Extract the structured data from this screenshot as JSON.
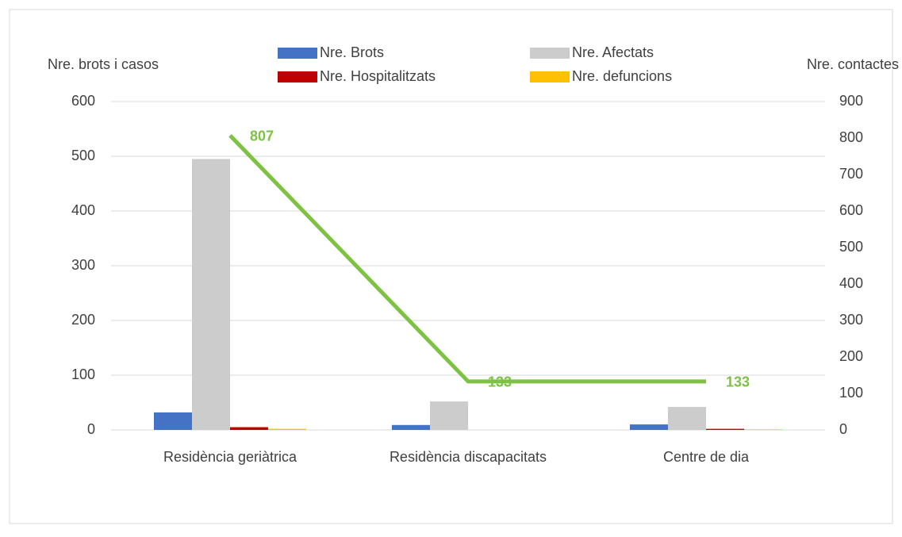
{
  "chart_data": {
    "type": "bar",
    "y_title": "Nre. brots i casos",
    "y2_title": "Nre. contactes",
    "categories": [
      "Residència geriàtrica",
      "Residència discapacitats",
      "Centre de dia"
    ],
    "series": [
      {
        "name": "Nre. Brots",
        "color": "#4472c4",
        "values": [
          32,
          9,
          10
        ]
      },
      {
        "name": "Nre. Afectats",
        "color": "#cccccc",
        "values": [
          495,
          52,
          42
        ]
      },
      {
        "name": "Nre. Hospitalitzats",
        "color": "#c00000",
        "values": [
          5,
          0,
          2
        ]
      },
      {
        "name": "Nre. defuncions",
        "color": "#ffc000",
        "values": [
          2,
          0,
          1
        ]
      },
      {
        "type": "line",
        "axis": "y2",
        "color": "#7dc243",
        "values": [
          807,
          133,
          133
        ]
      }
    ],
    "ylim": [
      0,
      600
    ],
    "yticks": [
      0,
      100,
      200,
      300,
      400,
      500,
      600
    ],
    "y2lim": [
      0,
      900
    ],
    "y2ticks": [
      0,
      100,
      200,
      300,
      400,
      500,
      600,
      700,
      800,
      900
    ],
    "grid": true,
    "legend": "top"
  }
}
